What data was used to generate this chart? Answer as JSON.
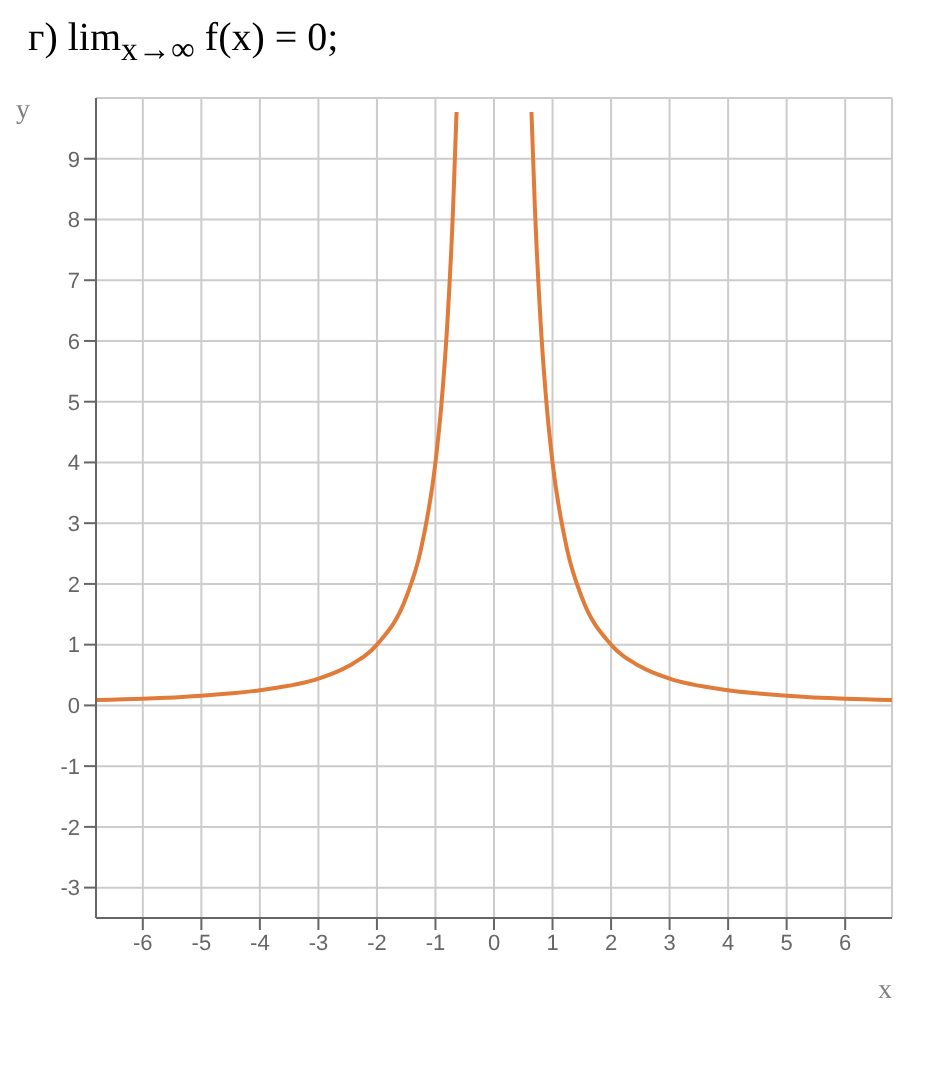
{
  "chart_data": {
    "type": "line",
    "title": "г) lim$_{x→∞}$ f(x) = 0;",
    "xlabel": "x",
    "ylabel": "y",
    "x": [
      -6.8,
      -6,
      -5,
      -4,
      -3,
      -2.5,
      -2,
      -1.5,
      -1.25,
      -1,
      -0.9,
      -0.8,
      -0.7,
      -0.64,
      0,
      0.64,
      0.7,
      0.8,
      0.9,
      1,
      1.25,
      1.5,
      2,
      2.5,
      3,
      4,
      5,
      6,
      6.8
    ],
    "series": [
      {
        "color": "#e07b39",
        "values": [
          0.09,
          0.11,
          0.16,
          0.25,
          0.44,
          0.64,
          1,
          1.78,
          2.56,
          4,
          4.94,
          6.25,
          8.16,
          9.77,
          null,
          9.77,
          8.16,
          6.25,
          4.94,
          4,
          2.56,
          1.78,
          1,
          0.64,
          0.44,
          0.25,
          0.16,
          0.11,
          0.09
        ]
      }
    ],
    "xlim": [
      -6.8,
      6.8
    ],
    "xticks": [
      -6,
      -5,
      -4,
      -3,
      -2,
      -1,
      0,
      1,
      2,
      3,
      4,
      5,
      6
    ],
    "ylim": [
      -3.5,
      10
    ],
    "yticks": [
      -3,
      -2,
      -1,
      0,
      1,
      2,
      3,
      4,
      5,
      6,
      7,
      8,
      9
    ],
    "grid": true,
    "marker": "none",
    "line_style": "solid",
    "legend": false
  }
}
